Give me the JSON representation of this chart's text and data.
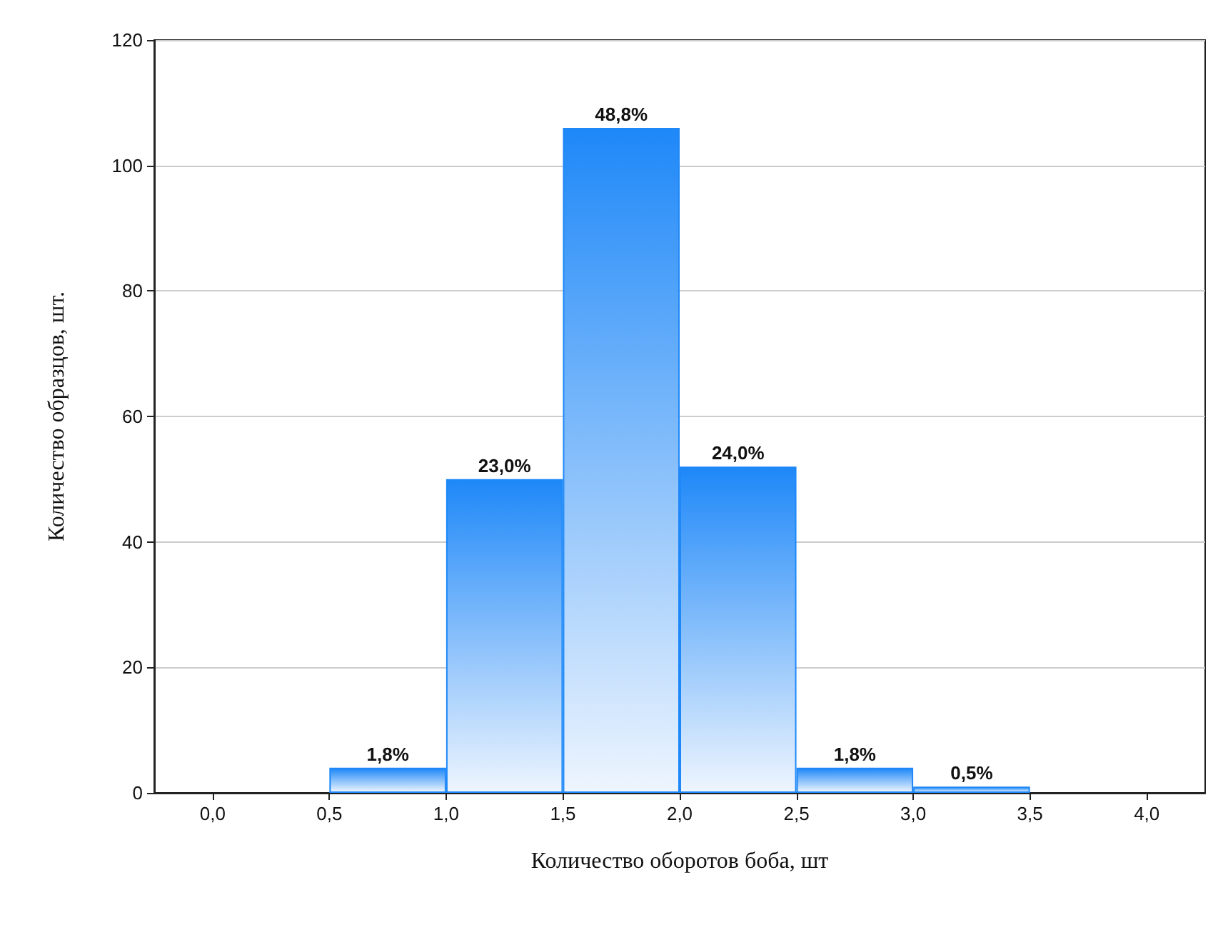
{
  "chart_data": {
    "type": "histogram",
    "xlabel": "Количество оборотов боба, шт",
    "ylabel": "Количество образцов, шт.",
    "bins": [
      0.5,
      1,
      1.5,
      2,
      2.5,
      3,
      3.5
    ],
    "values": [
      4,
      50,
      106,
      52,
      4,
      1
    ],
    "annotations": [
      {
        "text": "1,8%",
        "x": 0.75,
        "y": 4
      },
      {
        "text": "23,0%",
        "x": 1.25,
        "y": 50
      },
      {
        "text": "48,8%",
        "x": 1.75,
        "y": 106
      },
      {
        "text": "24,0%",
        "x": 2.25,
        "y": 52
      },
      {
        "text": "1,8%",
        "x": 2.75,
        "y": 4
      },
      {
        "text": "0,5%",
        "x": 3.25,
        "y": 1
      }
    ],
    "color": "#1e88f8",
    "xlim": [
      -0.25,
      4.25
    ],
    "xticks": [
      {
        "value": 0,
        "label": "0,0"
      },
      {
        "value": 0.5,
        "label": "0,5"
      },
      {
        "value": 1,
        "label": "1,0"
      },
      {
        "value": 1.5,
        "label": "1,5"
      },
      {
        "value": 2,
        "label": "2,0"
      },
      {
        "value": 2.5,
        "label": "2,5"
      },
      {
        "value": 3,
        "label": "3,0"
      },
      {
        "value": 3.5,
        "label": "3,5"
      },
      {
        "value": 4,
        "label": "4,0"
      }
    ],
    "ylim": [
      0,
      120
    ],
    "yticks": [
      0,
      20,
      40,
      60,
      80,
      100,
      120
    ],
    "grid": "y"
  }
}
